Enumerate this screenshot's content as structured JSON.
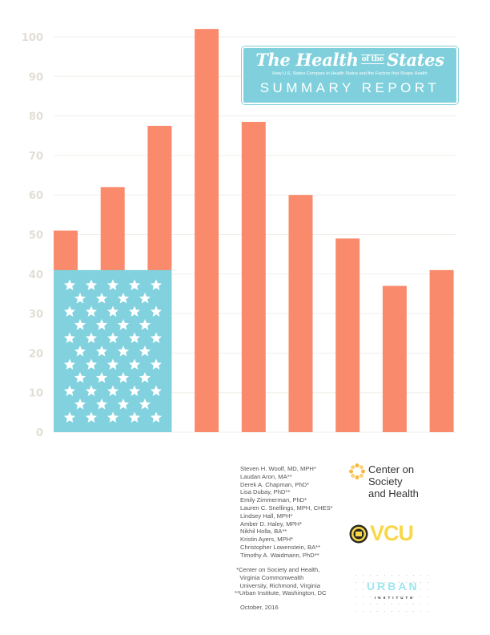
{
  "chart_data": {
    "type": "bar",
    "title": "",
    "xlabel": "",
    "ylabel": "",
    "ylim": [
      0,
      100
    ],
    "yticks": [
      "0",
      "10",
      "20",
      "30",
      "40",
      "50",
      "60",
      "70",
      "80",
      "90",
      "100"
    ],
    "values": [
      51,
      62,
      77.5,
      102,
      78.5,
      60,
      49,
      37,
      41
    ],
    "grid": true,
    "flag_overlay_value": 41,
    "colors": {
      "bar": "#f98a6b",
      "flag": "#81d2de",
      "grid": "#f1efe8",
      "tick": "#e2ded5"
    }
  },
  "title_box": {
    "title_part1": "The Health",
    "title_ofthe": "of the",
    "title_part2": "States",
    "subtitle": "How U.S. States Compare in Health Status and the Factors that Shape Health",
    "report": "SUMMARY REPORT"
  },
  "authors": [
    "Steven H. Woolf, MD, MPH*",
    "Laudan Aron, MA**",
    "Derek A. Chapman, PhD*",
    "Lisa Dubay, PhD**",
    "Emily Zimmerman, PhD*",
    "Lauren C. Snellings, MPH, CHES*",
    "Lindsey Hall, MPH*",
    "Amber D. Haley, MPH*",
    "Nikhil Holla, BA**",
    "Kristin Ayers, MPH*",
    "Christopher Lowenstein, BA**",
    "Timothy A. Waidmann, PhD**"
  ],
  "affiliations": [
    " *Center on Society and Health,",
    "   Virginia Commonwealth",
    "   University, Richmond, Virginia",
    "**Urban Institute, Washington, DC"
  ],
  "date": "October, 2016",
  "logos": {
    "csh": [
      "Center on",
      "Society",
      "and Health"
    ],
    "vcu": "VCU",
    "urban": "URBAN",
    "institute": "INSTITUTE"
  }
}
